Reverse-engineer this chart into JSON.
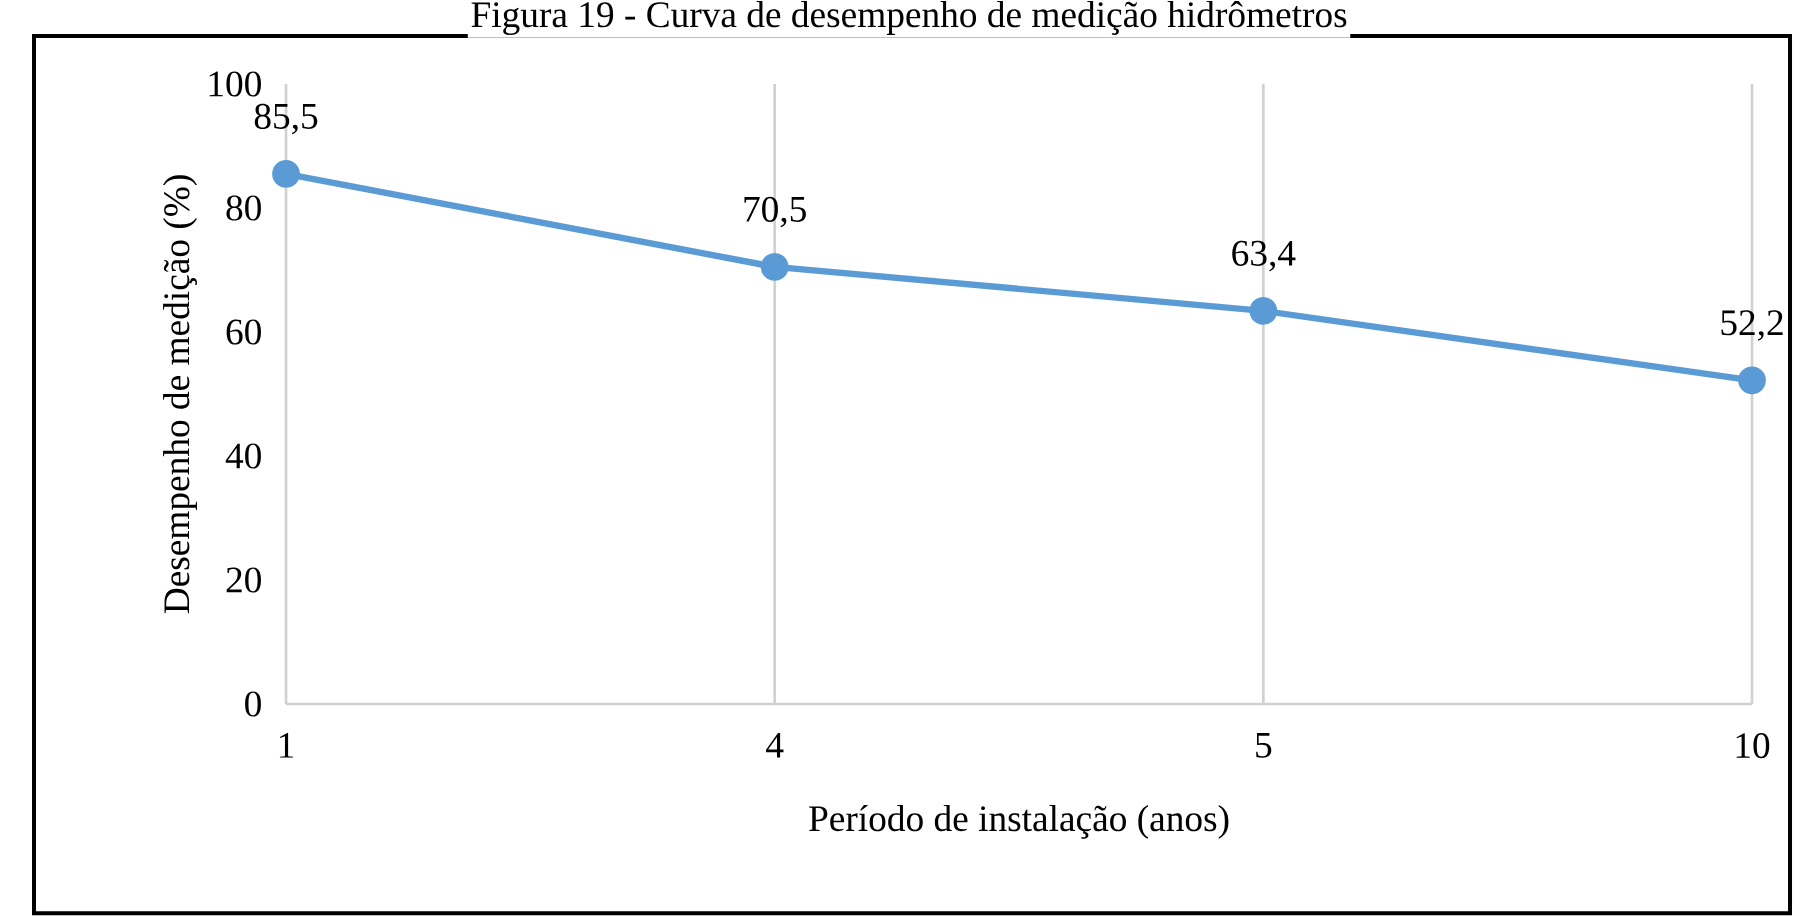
{
  "chart_data": {
    "type": "line",
    "title": "Figura 19 - Curva de desempenho de medição hidrômetros",
    "xlabel": "Período de instalação (anos)",
    "ylabel": "Desempenho de medição (%)",
    "categories": [
      "1",
      "4",
      "5",
      "10"
    ],
    "series": [
      {
        "color": "#5b9bd5",
        "values": [
          85.5,
          70.5,
          63.4,
          52.2
        ],
        "value_labels": [
          "85,5",
          "70,5",
          "63,4",
          "52,2"
        ]
      }
    ],
    "ylim": [
      0,
      100
    ],
    "yticks": [
      0,
      20,
      40,
      60,
      80,
      100
    ],
    "grid": "x",
    "marker": "circle",
    "line_style": "solid"
  }
}
